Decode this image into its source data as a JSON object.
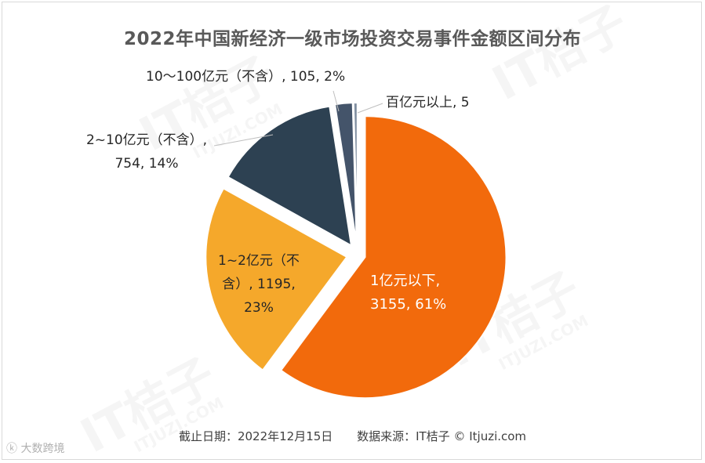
{
  "chart_data": {
    "type": "pie",
    "title": "2022年中国新经济一级市场投资交易事件金额区间分布",
    "slices": [
      {
        "label": "1亿元以下",
        "value": 3155,
        "percent": 61,
        "color": "#f26a0c"
      },
      {
        "label": "1~2亿元（不含）",
        "value": 1195,
        "percent": 23,
        "color": "#f5a82b"
      },
      {
        "label": "2~10亿元（不含）",
        "value": 754,
        "percent": 14,
        "color": "#2d4152"
      },
      {
        "label": "10～100亿元（不含）",
        "value": 105,
        "percent": 2,
        "color": "#44546a"
      },
      {
        "label": "百亿元以上",
        "value": 5,
        "percent": 0,
        "color": "#7f8ea0"
      }
    ],
    "labels": {
      "s0_line1": "1亿元以下,",
      "s0_line2": "3155, 61%",
      "s1_line1": "1~2亿元（不",
      "s1_line2": "含）, 1195,",
      "s1_line3": "23%",
      "s2_line1": "2~10亿元（不含）,",
      "s2_line2": "754, 14%",
      "s3_line1": "10～100亿元（不含）, 105, 2%",
      "s4_line1": "百亿元以上, 5"
    }
  },
  "footer": {
    "date_text": "截止日期：2022年12月15日",
    "source_text": "数据来源：IT桔子 © Itjuzi.com"
  },
  "watermark": {
    "brand": "IT桔子",
    "domain": "ITJUZI.COM",
    "corner": "大数跨境"
  }
}
